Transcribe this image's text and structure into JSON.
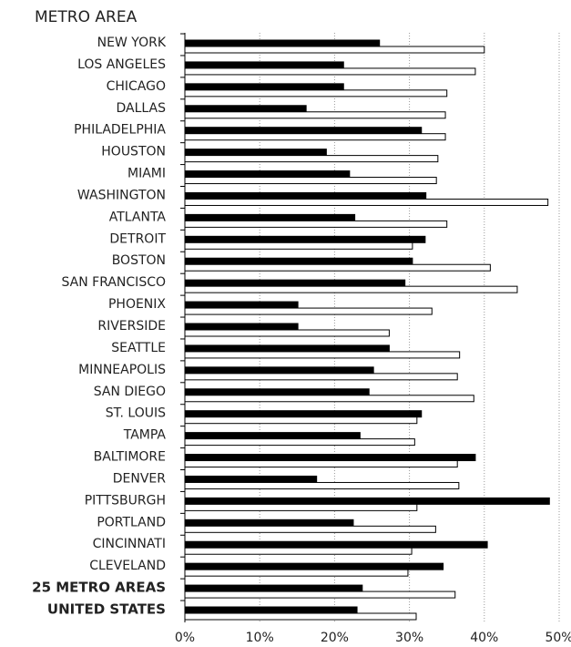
{
  "chart_data": {
    "type": "bar",
    "orientation": "horizontal",
    "title": "METRO AREA",
    "categories": [
      "NEW YORK",
      "LOS ANGELES",
      "CHICAGO",
      "DALLAS",
      "PHILADELPHIA",
      "HOUSTON",
      "MIAMI",
      "WASHINGTON",
      "ATLANTA",
      "DETROIT",
      "BOSTON",
      "SAN FRANCISCO",
      "PHOENIX",
      "RIVERSIDE",
      "SEATTLE",
      "MINNEAPOLIS",
      "SAN DIEGO",
      "ST. LOUIS",
      "TAMPA",
      "BALTIMORE",
      "DENVER",
      "PITTSBURGH",
      "PORTLAND",
      "CINCINNATI",
      "CLEVELAND",
      "25 METRO AREAS",
      "UNITED STATES"
    ],
    "series": [
      {
        "color": "#000000",
        "values": [
          26.0,
          21.2,
          21.2,
          16.2,
          31.6,
          18.9,
          22.0,
          32.2,
          22.7,
          32.1,
          30.4,
          29.4,
          15.1,
          15.1,
          27.3,
          25.2,
          24.6,
          31.6,
          23.4,
          38.8,
          17.6,
          48.7,
          22.5,
          40.4,
          34.5,
          23.7,
          23.0
        ]
      },
      {
        "color": "#ffffff",
        "values": [
          40.0,
          38.8,
          35.0,
          34.8,
          34.8,
          33.8,
          33.6,
          48.5,
          35.0,
          30.4,
          40.8,
          44.4,
          33.0,
          27.3,
          36.7,
          36.4,
          38.6,
          31.0,
          30.7,
          36.4,
          36.6,
          31.0,
          33.5,
          30.3,
          29.8,
          36.1,
          30.9
        ]
      }
    ],
    "xlim": [
      0,
      50
    ],
    "xticks": [
      {
        "value": 0,
        "label": "0%"
      },
      {
        "value": 10,
        "label": "10%"
      },
      {
        "value": 20,
        "label": "20%"
      },
      {
        "value": 30,
        "label": "30%"
      },
      {
        "value": 40,
        "label": "40%"
      },
      {
        "value": 50,
        "label": "50%"
      }
    ],
    "grid": true
  }
}
